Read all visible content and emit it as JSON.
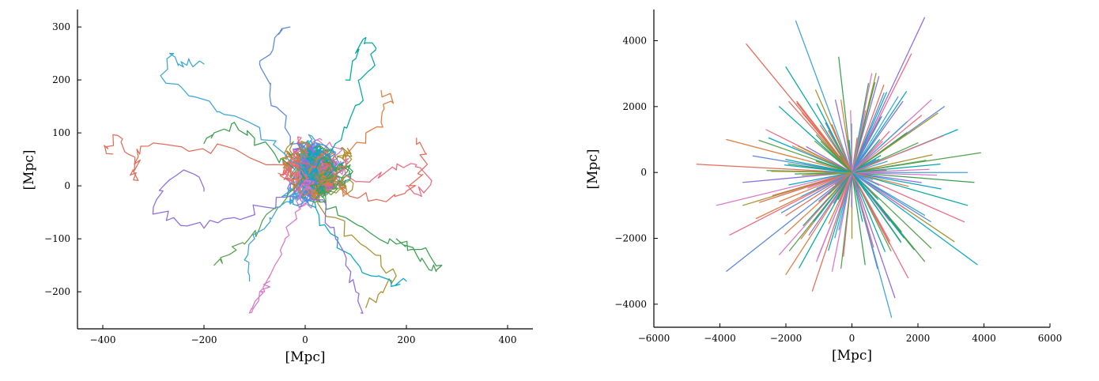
{
  "palette": [
    "#e26d5a",
    "#3da4d6",
    "#8d6cdf",
    "#3a9e4e",
    "#d977c8",
    "#00a9a0",
    "#f0687f",
    "#a7912c",
    "#5b86dd",
    "#05a7c6",
    "#de7d3f",
    "#54a24b"
  ],
  "chart_data": [
    {
      "type": "line",
      "title": "",
      "xlabel": "[Mpc]",
      "ylabel": "[Mpc]",
      "xlim": [
        -450,
        450
      ],
      "ylim": [
        -270,
        330
      ],
      "xticks": [
        -400,
        -200,
        0,
        200,
        400
      ],
      "yticks": [
        -200,
        -100,
        0,
        100,
        200,
        300
      ],
      "xtick_labels": [
        "−400",
        "−200",
        "0",
        "200",
        "400"
      ],
      "ytick_labels": [
        "−200",
        "−100",
        "0",
        "100",
        "200",
        "300"
      ],
      "grid": false,
      "legend": "none",
      "series": [
        {
          "x": [
            30,
            -60,
            -140,
            -230,
            -310,
            -330,
            -340,
            -330,
            -350,
            -370,
            -390,
            -380
          ],
          "y": [
            30,
            40,
            70,
            65,
            75,
            55,
            30,
            10,
            60,
            95,
            70,
            60
          ]
        },
        {
          "x": [
            10,
            -40,
            -90,
            -170,
            -230,
            -280,
            -260,
            -250,
            -230,
            -200
          ],
          "y": [
            20,
            60,
            110,
            140,
            170,
            200,
            250,
            230,
            240,
            230
          ]
        },
        {
          "x": [
            20,
            -30,
            -80,
            -140,
            -200,
            -260,
            -300,
            -280,
            -240,
            -200
          ],
          "y": [
            10,
            -20,
            -40,
            -60,
            -80,
            -60,
            -40,
            0,
            30,
            -10
          ]
        },
        {
          "x": [
            10,
            40,
            80,
            130,
            180,
            230,
            270,
            250,
            220,
            180
          ],
          "y": [
            0,
            -30,
            -60,
            -90,
            -110,
            -120,
            -150,
            -160,
            -130,
            -100
          ]
        },
        {
          "x": [
            0,
            -20,
            -40,
            -60,
            -80,
            -100,
            -110,
            -90,
            -70
          ],
          "y": [
            0,
            -50,
            -100,
            -150,
            -200,
            -220,
            -240,
            -200,
            -180
          ]
        },
        {
          "x": [
            20,
            60,
            90,
            110,
            130,
            140,
            120,
            100,
            80
          ],
          "y": [
            30,
            80,
            130,
            180,
            220,
            260,
            280,
            240,
            200
          ]
        },
        {
          "x": [
            30,
            80,
            130,
            180,
            220,
            250,
            230,
            200
          ],
          "y": [
            30,
            20,
            10,
            30,
            40,
            10,
            -20,
            0
          ]
        },
        {
          "x": [
            10,
            60,
            110,
            150,
            180,
            150,
            120
          ],
          "y": [
            -10,
            -60,
            -110,
            -150,
            -170,
            -200,
            -230
          ]
        },
        {
          "x": [
            0,
            -40,
            -70,
            -90,
            -60,
            -30
          ],
          "y": [
            60,
            110,
            170,
            230,
            280,
            300
          ]
        },
        {
          "x": [
            20,
            50,
            90,
            130,
            170,
            200
          ],
          "y": [
            -40,
            -90,
            -130,
            -170,
            -190,
            -180
          ]
        },
        {
          "x": [
            40,
            80,
            120,
            150,
            170,
            150
          ],
          "y": [
            10,
            60,
            100,
            120,
            160,
            180
          ]
        },
        {
          "x": [
            -10,
            -50,
            -90,
            -120,
            -150,
            -180
          ],
          "y": [
            10,
            -40,
            -80,
            -110,
            -130,
            -150
          ]
        },
        {
          "x": [
            20,
            70,
            110,
            160,
            200,
            230,
            240,
            220
          ],
          "y": [
            20,
            0,
            -20,
            -30,
            -10,
            20,
            60,
            90
          ]
        },
        {
          "x": [
            0,
            -30,
            -70,
            -100,
            -120,
            -110
          ],
          "y": [
            0,
            -30,
            -60,
            -100,
            -140,
            -180
          ]
        },
        {
          "x": [
            10,
            40,
            60,
            80,
            100,
            110
          ],
          "y": [
            -10,
            -50,
            -100,
            -150,
            -200,
            -240
          ]
        },
        {
          "x": [
            -20,
            -60,
            -100,
            -140,
            -180,
            -200
          ],
          "y": [
            30,
            60,
            90,
            120,
            100,
            80
          ]
        }
      ]
    },
    {
      "type": "line",
      "title": "",
      "xlabel": "[Mpc]",
      "ylabel": "[Mpc]",
      "xlim": [
        -6000,
        6000
      ],
      "ylim": [
        -4700,
        4900
      ],
      "xticks": [
        -6000,
        -4000,
        -2000,
        0,
        2000,
        4000,
        6000
      ],
      "yticks": [
        -4000,
        -2000,
        0,
        2000,
        4000
      ],
      "xtick_labels": [
        "−6000",
        "−4000",
        "−2000",
        "0",
        "2000",
        "4000",
        "6000"
      ],
      "ytick_labels": [
        "−4000",
        "−2000",
        "0",
        "2000",
        "4000"
      ],
      "grid": false,
      "legend": "none",
      "rays": [
        {
          "x": -3200,
          "y": 3900
        },
        {
          "x": -1700,
          "y": 4600
        },
        {
          "x": 2200,
          "y": 4700
        },
        {
          "x": -400,
          "y": 3500
        },
        {
          "x": 600,
          "y": 3000
        },
        {
          "x": -2000,
          "y": 3200
        },
        {
          "x": 1800,
          "y": 3600
        },
        {
          "x": -1100,
          "y": 2500
        },
        {
          "x": 2800,
          "y": 2000
        },
        {
          "x": 3200,
          "y": 1300
        },
        {
          "x": -3800,
          "y": 1000
        },
        {
          "x": 3900,
          "y": 600
        },
        {
          "x": -4700,
          "y": 250
        },
        {
          "x": 3500,
          "y": 0
        },
        {
          "x": -3300,
          "y": -300
        },
        {
          "x": 3700,
          "y": -300
        },
        {
          "x": -4100,
          "y": -1000
        },
        {
          "x": 3500,
          "y": -1000
        },
        {
          "x": -3700,
          "y": -1900
        },
        {
          "x": 3100,
          "y": -2100
        },
        {
          "x": -3800,
          "y": -3000
        },
        {
          "x": 3800,
          "y": -2800
        },
        {
          "x": -2000,
          "y": -3100
        },
        {
          "x": 2200,
          "y": -2700
        },
        {
          "x": -1200,
          "y": -3600
        },
        {
          "x": 1200,
          "y": -4400
        },
        {
          "x": 1300,
          "y": -3800
        },
        {
          "x": 400,
          "y": -2800
        },
        {
          "x": -600,
          "y": -3000
        },
        {
          "x": 1000,
          "y": -2400
        },
        {
          "x": -2600,
          "y": 1300
        },
        {
          "x": 2600,
          "y": 1800
        },
        {
          "x": -3000,
          "y": 500
        },
        {
          "x": 2700,
          "y": -500
        },
        {
          "x": -2900,
          "y": -1400
        },
        {
          "x": 2400,
          "y": -2300
        },
        {
          "x": -1500,
          "y": 1800
        },
        {
          "x": 1400,
          "y": 2300
        },
        {
          "x": -500,
          "y": 2200
        },
        {
          "x": 500,
          "y": 2700
        },
        {
          "x": -2200,
          "y": -2500
        },
        {
          "x": -1600,
          "y": -2900
        },
        {
          "x": 1700,
          "y": -3200
        },
        {
          "x": 0,
          "y": -2000
        },
        {
          "x": -800,
          "y": 1500
        },
        {
          "x": 900,
          "y": 1700
        },
        {
          "x": -1800,
          "y": 800
        },
        {
          "x": 2000,
          "y": 900
        },
        {
          "x": -2400,
          "y": -700
        },
        {
          "x": 2200,
          "y": -1300
        },
        {
          "x": -1300,
          "y": -1900
        },
        {
          "x": 1500,
          "y": -1800
        },
        {
          "x": 2400,
          "y": 2200
        },
        {
          "x": -2200,
          "y": 2000
        },
        {
          "x": 3400,
          "y": -1500
        },
        {
          "x": -3300,
          "y": -1000
        }
      ]
    }
  ]
}
